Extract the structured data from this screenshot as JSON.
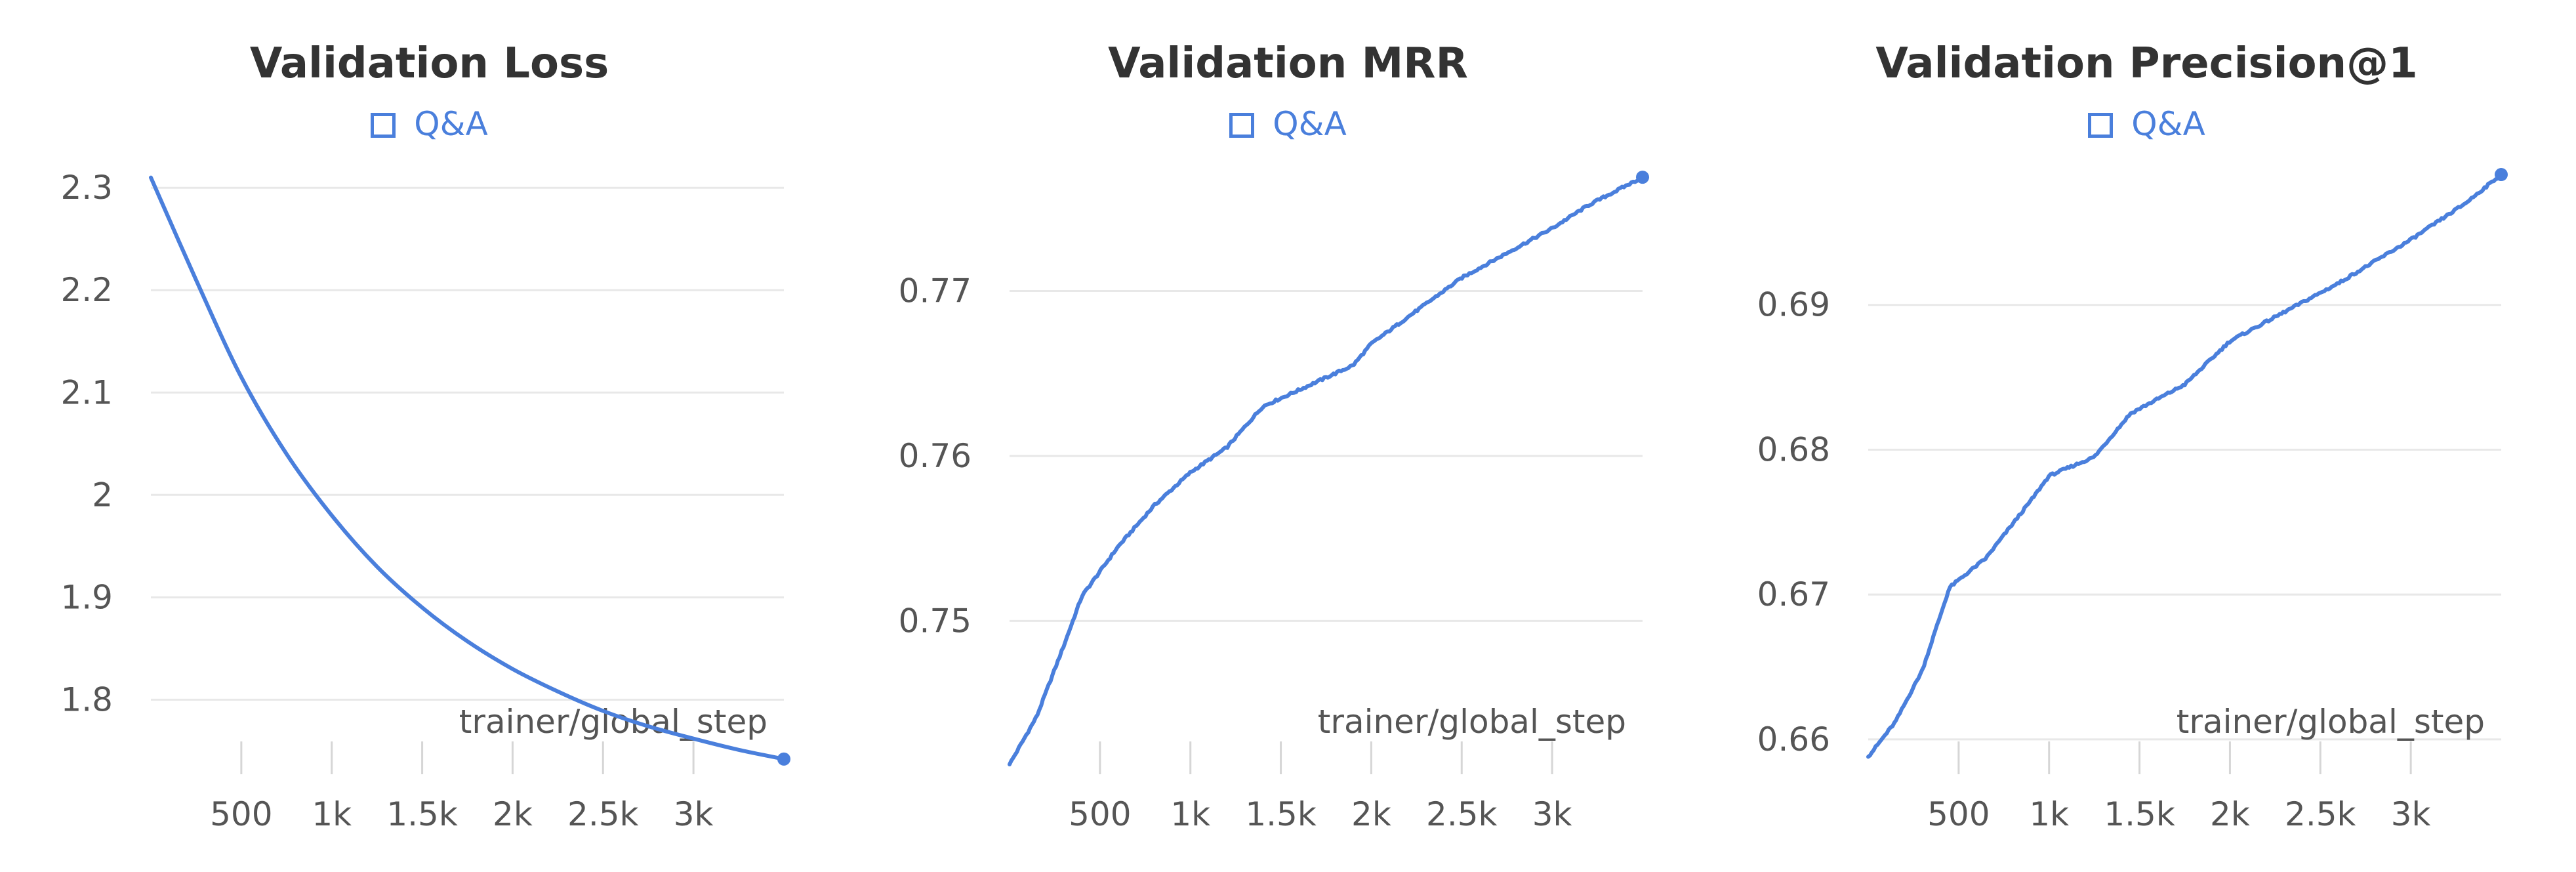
{
  "colors": {
    "series": "#4a7fdc",
    "grid": "#e8e8e8",
    "text": "#333333"
  },
  "chart_data": [
    {
      "type": "line",
      "title": "Validation Loss",
      "xlabel": "trainer/global_step",
      "ylabel": "",
      "legend": [
        "Q&A"
      ],
      "legend_position": "top-center",
      "grid": true,
      "xlim": [
        0,
        3500
      ],
      "ylim": [
        1.74,
        2.32
      ],
      "xticks": [
        500,
        1000,
        1500,
        2000,
        2500,
        3000
      ],
      "xtick_labels": [
        "500",
        "1k",
        "1.5k",
        "2k",
        "2.5k",
        "3k"
      ],
      "yticks": [
        1.8,
        1.9,
        2.0,
        2.1,
        2.2,
        2.3
      ],
      "ytick_labels": [
        "1.8",
        "1.9",
        "2",
        "2.1",
        "2.2",
        "2.3"
      ],
      "series": [
        {
          "name": "Q&A",
          "x": [
            0,
            250,
            500,
            750,
            1000,
            1250,
            1500,
            1750,
            2000,
            2250,
            2500,
            2750,
            3000,
            3250,
            3500
          ],
          "y": [
            2.31,
            2.21,
            2.115,
            2.04,
            1.98,
            1.93,
            1.89,
            1.857,
            1.83,
            1.808,
            1.789,
            1.774,
            1.762,
            1.751,
            1.742
          ]
        }
      ]
    },
    {
      "type": "line",
      "title": "Validation MRR",
      "xlabel": "trainer/global_step",
      "ylabel": "",
      "legend": [
        "Q&A"
      ],
      "legend_position": "top-center",
      "grid": true,
      "xlim": [
        0,
        3500
      ],
      "ylim": [
        0.7415,
        0.7775
      ],
      "xticks": [
        500,
        1000,
        1500,
        2000,
        2500,
        3000
      ],
      "xtick_labels": [
        "500",
        "1k",
        "1.5k",
        "2k",
        "2.5k",
        "3k"
      ],
      "yticks": [
        0.75,
        0.76,
        0.77
      ],
      "ytick_labels": [
        "0.75",
        "0.76",
        "0.77"
      ],
      "series": [
        {
          "name": "Q&A",
          "x": [
            0,
            150,
            300,
            400,
            600,
            800,
            1000,
            1200,
            1400,
            1600,
            1900,
            2000,
            2500,
            3000,
            3200,
            3500
          ],
          "y": [
            0.7413,
            0.7442,
            0.7485,
            0.7515,
            0.7545,
            0.757,
            0.759,
            0.7605,
            0.763,
            0.764,
            0.7655,
            0.7668,
            0.7708,
            0.7738,
            0.7752,
            0.7769
          ]
        }
      ]
    },
    {
      "type": "line",
      "title": "Validation Precision@1",
      "xlabel": "trainer/global_step",
      "ylabel": "",
      "legend": [
        "Q&A"
      ],
      "legend_position": "top-center",
      "grid": true,
      "xlim": [
        0,
        3500
      ],
      "ylim": [
        0.6585,
        0.6995
      ],
      "xticks": [
        500,
        1000,
        1500,
        2000,
        2500,
        3000
      ],
      "xtick_labels": [
        "500",
        "1k",
        "1.5k",
        "2k",
        "2.5k",
        "3k"
      ],
      "yticks": [
        0.66,
        0.67,
        0.68,
        0.69
      ],
      "ytick_labels": [
        "0.66",
        "0.67",
        "0.68",
        "0.69"
      ],
      "series": [
        {
          "name": "Q&A",
          "x": [
            0,
            150,
            300,
            450,
            650,
            900,
            1000,
            1250,
            1450,
            1750,
            2000,
            2300,
            2600,
            3000,
            3300,
            3500
          ],
          "y": [
            0.6588,
            0.6612,
            0.6648,
            0.6705,
            0.6725,
            0.6765,
            0.6782,
            0.6795,
            0.6825,
            0.6845,
            0.6875,
            0.6895,
            0.6915,
            0.6945,
            0.697,
            0.699
          ]
        }
      ]
    }
  ]
}
